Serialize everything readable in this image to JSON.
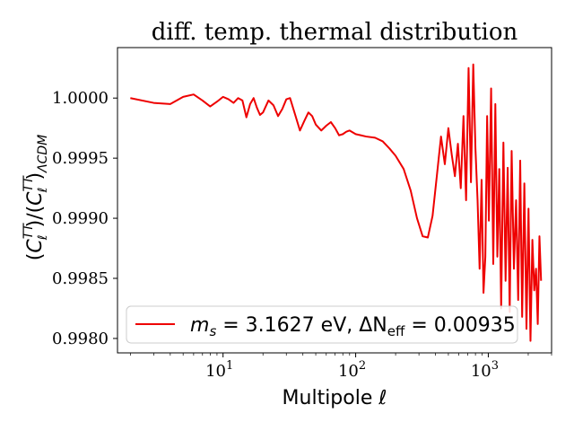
{
  "chart_data": {
    "type": "line",
    "title": "diff. temp. thermal distribution",
    "xlabel": "Multipole  ℓ",
    "ylabel": "(C_ℓ^TT)/(C_ℓ^TT)_ΛCDM",
    "xscale": "log",
    "xlim": [
      1.6,
      3000
    ],
    "ylim": [
      0.99788,
      1.00042
    ],
    "grid": false,
    "legend_position": "lower-center",
    "x_ticks": [
      {
        "base": "10",
        "exp": "1"
      },
      {
        "base": "10",
        "exp": "2"
      },
      {
        "base": "10",
        "exp": "3"
      }
    ],
    "y_ticks": [
      "0.9980",
      "0.9985",
      "0.9990",
      "0.9995",
      "1.0000"
    ],
    "series": [
      {
        "name": "m_s = 3.1627 eV, ΔN_eff = 0.00935",
        "color": "#ee0000",
        "x": [
          2,
          3,
          4,
          5,
          6,
          7,
          8,
          9,
          10,
          11,
          12,
          13,
          14,
          15,
          16,
          17,
          18,
          19,
          20,
          22,
          24,
          26,
          28,
          30,
          32,
          35,
          38,
          41,
          44,
          47,
          50,
          55,
          60,
          65,
          70,
          75,
          80,
          85,
          90,
          100,
          110,
          120,
          140,
          160,
          180,
          200,
          230,
          260,
          290,
          320,
          350,
          380,
          410,
          440,
          470,
          500,
          530,
          560,
          590,
          620,
          650,
          680,
          710,
          740,
          770,
          800,
          830,
          860,
          890,
          920,
          950,
          980,
          1010,
          1050,
          1090,
          1130,
          1170,
          1210,
          1250,
          1300,
          1350,
          1400,
          1450,
          1500,
          1560,
          1620,
          1680,
          1740,
          1800,
          1870,
          1940,
          2010,
          2080,
          2150,
          2220,
          2290,
          2360,
          2430,
          2500
        ],
        "y": [
          1.0,
          0.99996,
          0.99995,
          1.00001,
          1.00003,
          0.99998,
          0.99993,
          0.99997,
          1.00001,
          0.99999,
          0.99996,
          1.0,
          0.99998,
          0.99984,
          0.99995,
          1.0,
          0.99992,
          0.99986,
          0.99988,
          0.99998,
          0.99994,
          0.99985,
          0.99991,
          0.99999,
          1.0,
          0.99986,
          0.99973,
          0.99981,
          0.99988,
          0.99985,
          0.99978,
          0.99973,
          0.99977,
          0.9998,
          0.99975,
          0.99969,
          0.9997,
          0.99972,
          0.99973,
          0.9997,
          0.99969,
          0.99968,
          0.99967,
          0.99964,
          0.99958,
          0.99952,
          0.99941,
          0.99923,
          0.999,
          0.99885,
          0.99884,
          0.99902,
          0.99936,
          0.99968,
          0.99945,
          0.99975,
          0.99953,
          0.99935,
          0.99962,
          0.99925,
          0.99985,
          0.99915,
          1.00025,
          0.9993,
          1.00028,
          0.99958,
          0.99915,
          0.99858,
          0.99932,
          0.99838,
          0.99868,
          0.99985,
          0.99898,
          1.00008,
          0.99862,
          0.99995,
          0.99868,
          0.99941,
          0.99825,
          0.99963,
          0.99848,
          0.99942,
          0.99822,
          0.99956,
          0.99858,
          0.99915,
          0.99832,
          0.99948,
          0.99818,
          0.99929,
          0.99808,
          0.99908,
          0.99798,
          0.99882,
          0.9984,
          0.99858,
          0.99812,
          0.99885,
          0.99848
        ]
      }
    ]
  },
  "legend": {
    "label_part1": "m",
    "label_sub1": "s",
    "label_part2": " = 3.1627 eV, ΔN",
    "label_sub2": "eff",
    "label_part3": " = 0.00935"
  }
}
